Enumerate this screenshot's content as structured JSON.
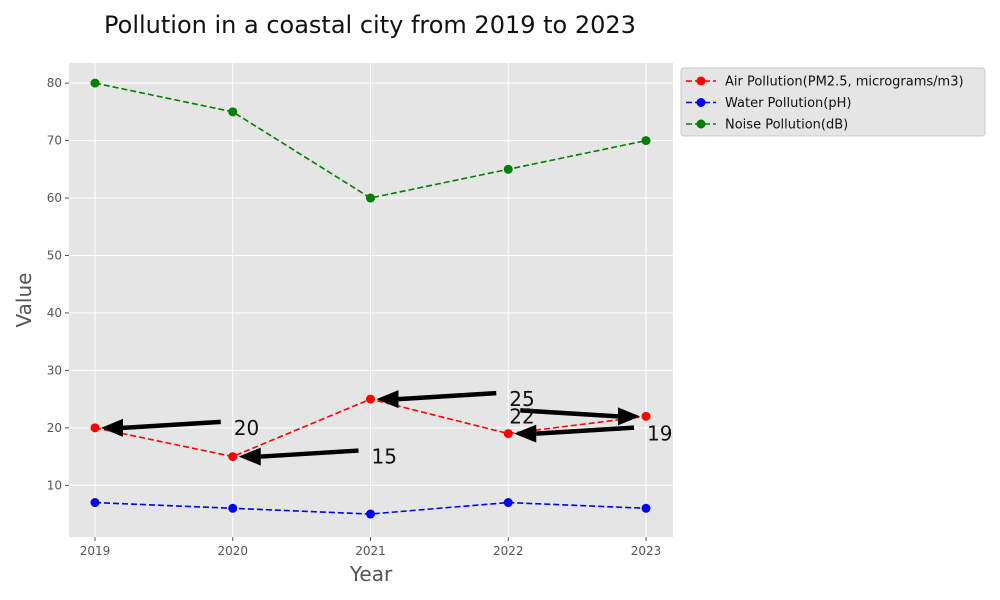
{
  "chart_data": {
    "type": "line",
    "title": "Pollution in a coastal city from 2019 to 2023",
    "xlabel": "Year",
    "ylabel": "Value",
    "x": [
      "2019",
      "2020",
      "2021",
      "2022",
      "2023"
    ],
    "series": [
      {
        "name": "Air Pollution(PM2.5, micrograms/m3)",
        "color": "#ff0000",
        "values": [
          20,
          15,
          25,
          19,
          22
        ]
      },
      {
        "name": "Water Pollution(pH)",
        "color": "#0000ff",
        "values": [
          7,
          6,
          5,
          7,
          6
        ]
      },
      {
        "name": "Noise Pollution(dB)",
        "color": "#008000",
        "values": [
          80,
          75,
          60,
          65,
          70
        ]
      }
    ],
    "yticks": [
      10,
      20,
      30,
      40,
      50,
      60,
      70,
      80
    ],
    "ylim": [
      1,
      83.5
    ],
    "grid": true,
    "legend_position": "outside-top-right",
    "annotations": [
      {
        "text": "20",
        "x": "2020",
        "y": 20,
        "arrow_to_x": "2019",
        "arrow_to_y": 20
      },
      {
        "text": "15",
        "x": "2021",
        "y": 15,
        "arrow_to_x": "2020",
        "arrow_to_y": 15
      },
      {
        "text": "25",
        "x": "2022",
        "y": 25,
        "arrow_to_x": "2021",
        "arrow_to_y": 25
      },
      {
        "text": "22",
        "x": "2022",
        "y": 22,
        "arrow_to_x": "2023",
        "arrow_to_y": 22
      },
      {
        "text": "19",
        "x": "2023",
        "y": 19,
        "arrow_to_x": "2022",
        "arrow_to_y": 19
      }
    ]
  }
}
